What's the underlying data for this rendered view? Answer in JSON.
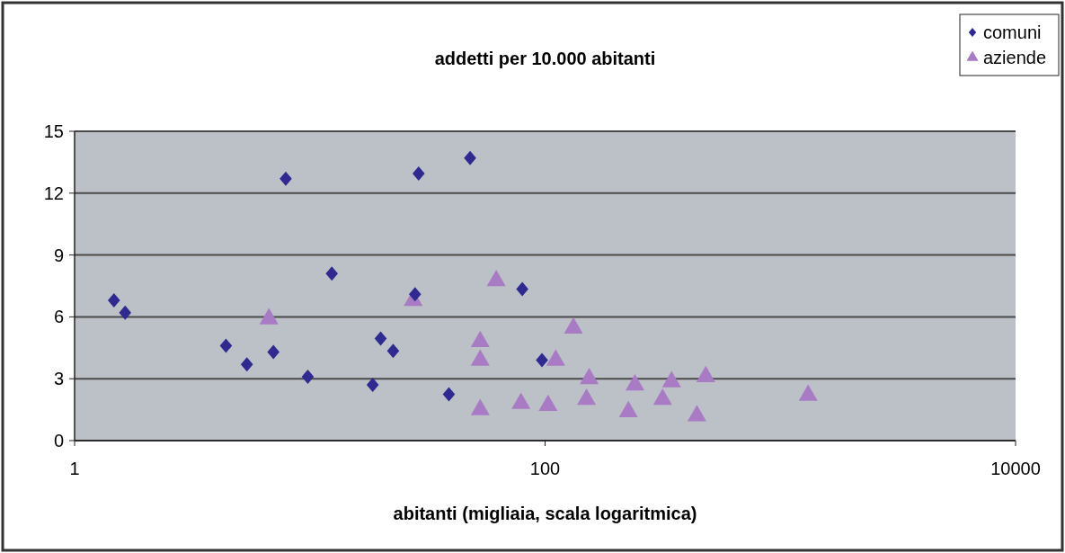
{
  "chart_data": {
    "type": "scatter",
    "title": "addetti per 10.000 abitanti",
    "xlabel": "abitanti (migliaia, scala logaritmica)",
    "log": "x",
    "xlim": [
      1,
      10000
    ],
    "xticks": [
      1,
      100,
      10000
    ],
    "ylim": [
      0,
      15
    ],
    "yticks": [
      0,
      3,
      6,
      9,
      12,
      15
    ],
    "grid": "y",
    "legend": "top right",
    "series": [
      {
        "name": "comuni",
        "color": "#2e2a8f",
        "marker": "diamond",
        "x": [
          1.47,
          1.64,
          4.4,
          5.4,
          7,
          7.9,
          9.8,
          12.4,
          18.5,
          20,
          22.6,
          28,
          29,
          39,
          48,
          80,
          97
        ],
        "values": [
          6.8,
          6.2,
          4.6,
          3.7,
          4.3,
          12.7,
          3.1,
          8.1,
          2.7,
          4.95,
          4.35,
          7.1,
          12.95,
          2.25,
          13.7,
          7.35,
          3.9
        ]
      },
      {
        "name": "aziende",
        "color": "#a87bc4",
        "marker": "triangle",
        "x": [
          6.7,
          27.5,
          53,
          53,
          53,
          62,
          79,
          103,
          111,
          132,
          150,
          154,
          226,
          241,
          316,
          345,
          442,
          482,
          1313
        ],
        "values": [
          5.9,
          6.8,
          4.8,
          3.9,
          1.5,
          7.75,
          1.8,
          1.7,
          3.9,
          5.45,
          2.0,
          3.0,
          1.4,
          2.7,
          2.0,
          2.85,
          1.2,
          3.1,
          2.2
        ]
      }
    ]
  }
}
